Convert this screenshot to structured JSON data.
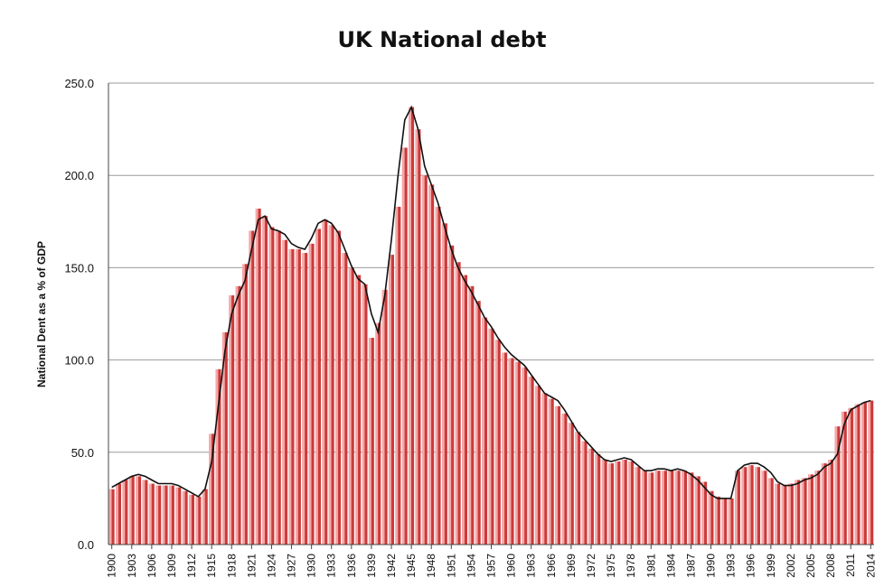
{
  "chart_data": {
    "type": "bar",
    "title": "UK National debt",
    "xlabel": "",
    "ylabel": "National Dent as a % of GDP",
    "ylim": [
      0,
      250
    ],
    "yticks": [
      "0.0",
      "50.0",
      "100.0",
      "150.0",
      "200.0",
      "250.0"
    ],
    "grid": true,
    "legend": "none",
    "x_tick_labels": [
      "1900",
      "1903",
      "1906",
      "1909",
      "1912",
      "1915",
      "1918",
      "1921",
      "1924",
      "1927",
      "1930",
      "1933",
      "1936",
      "1939",
      "1942",
      "1945",
      "1948",
      "1951",
      "1954",
      "1957",
      "1960",
      "1963",
      "1966",
      "1969",
      "1972",
      "1975",
      "1978",
      "1981",
      "1984",
      "1987",
      "1990",
      "1993",
      "1996",
      "1999",
      "2002",
      "2005",
      "2008",
      "2011",
      "2014"
    ],
    "categories": [
      1900,
      1901,
      1902,
      1903,
      1904,
      1905,
      1906,
      1907,
      1908,
      1909,
      1910,
      1911,
      1912,
      1913,
      1914,
      1915,
      1916,
      1917,
      1918,
      1919,
      1920,
      1921,
      1922,
      1923,
      1924,
      1925,
      1926,
      1927,
      1928,
      1929,
      1930,
      1931,
      1932,
      1933,
      1934,
      1935,
      1936,
      1937,
      1938,
      1939,
      1940,
      1941,
      1942,
      1943,
      1944,
      1945,
      1946,
      1947,
      1948,
      1949,
      1950,
      1951,
      1952,
      1953,
      1954,
      1955,
      1956,
      1957,
      1958,
      1959,
      1960,
      1961,
      1962,
      1963,
      1964,
      1965,
      1966,
      1967,
      1968,
      1969,
      1970,
      1971,
      1972,
      1973,
      1974,
      1975,
      1976,
      1977,
      1978,
      1979,
      1980,
      1981,
      1982,
      1983,
      1984,
      1985,
      1986,
      1987,
      1988,
      1989,
      1990,
      1991,
      1992,
      1993,
      1994,
      1995,
      1996,
      1997,
      1998,
      1999,
      2000,
      2001,
      2002,
      2003,
      2004,
      2005,
      2006,
      2007,
      2008,
      2009,
      2010,
      2011,
      2012,
      2013,
      2014
    ],
    "values": [
      30,
      33,
      35,
      37,
      37,
      35,
      33,
      32,
      32,
      32,
      31,
      29,
      27,
      26,
      30,
      60,
      95,
      115,
      135,
      140,
      152,
      170,
      182,
      178,
      172,
      170,
      165,
      160,
      160,
      158,
      163,
      171,
      176,
      173,
      170,
      158,
      150,
      146,
      141,
      112,
      120,
      138,
      157,
      183,
      215,
      237,
      225,
      200,
      195,
      183,
      174,
      162,
      153,
      146,
      140,
      132,
      123,
      117,
      111,
      104,
      101,
      99,
      96,
      91,
      86,
      82,
      79,
      75,
      71,
      66,
      61,
      56,
      52,
      49,
      46,
      44,
      45,
      46,
      45,
      42,
      40,
      39,
      40,
      40,
      40,
      40,
      40,
      39,
      37,
      34,
      29,
      26,
      25,
      25,
      40,
      42,
      43,
      42,
      40,
      36,
      33,
      32,
      33,
      35,
      36,
      38,
      40,
      44,
      46,
      64,
      72,
      74,
      76,
      77,
      78
    ],
    "line_values": [
      31,
      33,
      35,
      37,
      38,
      37,
      35,
      33,
      33,
      33,
      32,
      30,
      28,
      26,
      30,
      45,
      75,
      105,
      125,
      135,
      143,
      160,
      176,
      178,
      171,
      170,
      168,
      163,
      161,
      160,
      166,
      174,
      176,
      174,
      169,
      160,
      151,
      144,
      141,
      125,
      115,
      135,
      165,
      200,
      230,
      237,
      225,
      205,
      195,
      185,
      172,
      160,
      150,
      143,
      137,
      130,
      123,
      118,
      112,
      107,
      103,
      100,
      97,
      92,
      87,
      82,
      80,
      78,
      73,
      67,
      61,
      57,
      53,
      49,
      46,
      45,
      46,
      47,
      46,
      43,
      40,
      40,
      41,
      41,
      40,
      41,
      40,
      38,
      35,
      31,
      27,
      25,
      25,
      25,
      40,
      43,
      44,
      44,
      42,
      39,
      34,
      32,
      32,
      33,
      35,
      36,
      38,
      42,
      44,
      49,
      65,
      73,
      75,
      77,
      78
    ]
  }
}
